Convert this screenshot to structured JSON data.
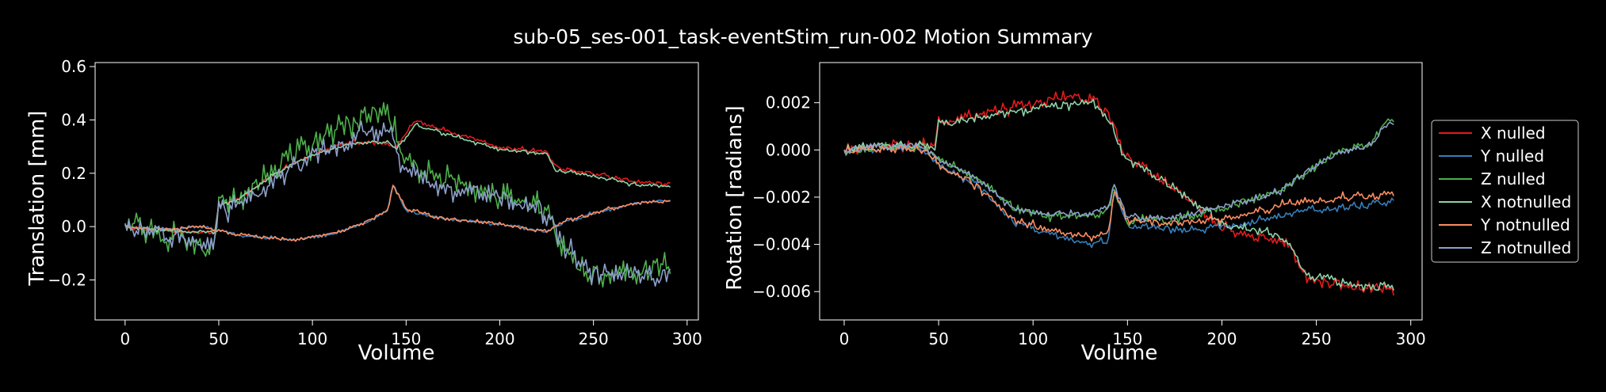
{
  "figure_title": "sub-05_ses-001_task-eventStim_run-002 Motion Summary",
  "colors": {
    "background": "#000000",
    "foreground": "#ffffff"
  },
  "chart_data": [
    {
      "type": "line",
      "ylabel": "Translation [mm]",
      "xlabel": "Volume",
      "xlim": [
        -16,
        306
      ],
      "ylim": [
        -0.35,
        0.615
      ],
      "xticks": [
        0,
        50,
        100,
        150,
        200,
        250,
        300
      ],
      "yticks": [
        -0.2,
        0.0,
        0.2,
        0.4,
        0.6
      ],
      "ytick_labels": [
        "−0.2",
        "0.0",
        "0.2",
        "0.4",
        "0.6"
      ],
      "grid": false,
      "series": [
        {
          "name": "X nulled",
          "color": "#e41a1c",
          "noise": 0.008,
          "anchors": [
            [
              0,
              0.0
            ],
            [
              15,
              -0.01
            ],
            [
              30,
              -0.02
            ],
            [
              48,
              -0.02
            ],
            [
              50,
              0.08
            ],
            [
              60,
              0.1
            ],
            [
              80,
              0.2
            ],
            [
              100,
              0.27
            ],
            [
              120,
              0.32
            ],
            [
              140,
              0.31
            ],
            [
              145,
              0.3
            ],
            [
              155,
              0.4
            ],
            [
              175,
              0.35
            ],
            [
              200,
              0.3
            ],
            [
              225,
              0.28
            ],
            [
              230,
              0.22
            ],
            [
              250,
              0.2
            ],
            [
              270,
              0.17
            ],
            [
              291,
              0.16
            ]
          ]
        },
        {
          "name": "Y nulled",
          "color": "#377eb8",
          "noise": 0.006,
          "anchors": [
            [
              0,
              0.0
            ],
            [
              20,
              -0.01
            ],
            [
              40,
              0.0
            ],
            [
              60,
              -0.03
            ],
            [
              90,
              -0.05
            ],
            [
              110,
              -0.03
            ],
            [
              130,
              0.02
            ],
            [
              140,
              0.06
            ],
            [
              143,
              0.16
            ],
            [
              150,
              0.06
            ],
            [
              170,
              0.03
            ],
            [
              200,
              0.01
            ],
            [
              225,
              -0.02
            ],
            [
              235,
              0.02
            ],
            [
              255,
              0.06
            ],
            [
              275,
              0.09
            ],
            [
              291,
              0.1
            ]
          ]
        },
        {
          "name": "Z nulled",
          "color": "#4daf4a",
          "noise": 0.05,
          "anchors": [
            [
              0,
              0.0
            ],
            [
              15,
              0.0
            ],
            [
              30,
              -0.06
            ],
            [
              48,
              -0.07
            ],
            [
              50,
              0.07
            ],
            [
              70,
              0.15
            ],
            [
              90,
              0.27
            ],
            [
              110,
              0.35
            ],
            [
              130,
              0.42
            ],
            [
              143,
              0.4
            ],
            [
              147,
              0.25
            ],
            [
              165,
              0.18
            ],
            [
              190,
              0.14
            ],
            [
              210,
              0.1
            ],
            [
              225,
              0.07
            ],
            [
              235,
              -0.1
            ],
            [
              250,
              -0.18
            ],
            [
              270,
              -0.17
            ],
            [
              291,
              -0.14
            ]
          ]
        },
        {
          "name": "X notnulled",
          "color": "#8dd3a7",
          "noise": 0.007,
          "anchors": [
            [
              0,
              0.0
            ],
            [
              15,
              -0.01
            ],
            [
              30,
              -0.02
            ],
            [
              48,
              -0.02
            ],
            [
              50,
              0.08
            ],
            [
              60,
              0.1
            ],
            [
              80,
              0.2
            ],
            [
              100,
              0.27
            ],
            [
              120,
              0.31
            ],
            [
              140,
              0.32
            ],
            [
              145,
              0.29
            ],
            [
              155,
              0.38
            ],
            [
              175,
              0.34
            ],
            [
              200,
              0.29
            ],
            [
              225,
              0.27
            ],
            [
              230,
              0.21
            ],
            [
              250,
              0.19
            ],
            [
              270,
              0.16
            ],
            [
              291,
              0.15
            ]
          ]
        },
        {
          "name": "Y notnulled",
          "color": "#fc8d62",
          "noise": 0.007,
          "anchors": [
            [
              0,
              0.0
            ],
            [
              20,
              -0.01
            ],
            [
              40,
              0.0
            ],
            [
              60,
              -0.03
            ],
            [
              90,
              -0.05
            ],
            [
              110,
              -0.03
            ],
            [
              130,
              0.02
            ],
            [
              140,
              0.06
            ],
            [
              143,
              0.15
            ],
            [
              150,
              0.07
            ],
            [
              170,
              0.03
            ],
            [
              200,
              0.01
            ],
            [
              225,
              -0.02
            ],
            [
              235,
              0.02
            ],
            [
              255,
              0.06
            ],
            [
              275,
              0.09
            ],
            [
              291,
              0.1
            ]
          ]
        },
        {
          "name": "Z notnulled",
          "color": "#8da0cb",
          "noise": 0.04,
          "anchors": [
            [
              0,
              0.0
            ],
            [
              15,
              0.0
            ],
            [
              30,
              -0.05
            ],
            [
              48,
              -0.06
            ],
            [
              50,
              0.06
            ],
            [
              70,
              0.12
            ],
            [
              90,
              0.22
            ],
            [
              110,
              0.3
            ],
            [
              130,
              0.36
            ],
            [
              143,
              0.35
            ],
            [
              147,
              0.22
            ],
            [
              165,
              0.15
            ],
            [
              190,
              0.12
            ],
            [
              210,
              0.08
            ],
            [
              225,
              0.06
            ],
            [
              235,
              -0.08
            ],
            [
              250,
              -0.17
            ],
            [
              270,
              -0.18
            ],
            [
              291,
              -0.17
            ]
          ]
        }
      ]
    },
    {
      "type": "line",
      "ylabel": "Rotation [radians]",
      "xlabel": "Volume",
      "xlim": [
        -13,
        306
      ],
      "ylim": [
        -0.0072,
        0.0037
      ],
      "xticks": [
        0,
        50,
        100,
        150,
        200,
        250,
        300
      ],
      "yticks": [
        -0.006,
        -0.004,
        -0.002,
        0.0,
        0.002
      ],
      "ytick_labels": [
        "−0.006",
        "−0.004",
        "−0.002",
        "0.000",
        "0.002"
      ],
      "grid": false,
      "series": [
        {
          "name": "X nulled",
          "color": "#e41a1c",
          "noise": 0.00025,
          "anchors": [
            [
              0,
              0.0
            ],
            [
              20,
              0.0002
            ],
            [
              45,
              0.0002
            ],
            [
              48,
              0.0001
            ],
            [
              50,
              0.0012
            ],
            [
              70,
              0.0015
            ],
            [
              90,
              0.0018
            ],
            [
              110,
              0.0021
            ],
            [
              130,
              0.0023
            ],
            [
              140,
              0.0015
            ],
            [
              148,
              -0.0002
            ],
            [
              160,
              -0.0008
            ],
            [
              180,
              -0.002
            ],
            [
              200,
              -0.0033
            ],
            [
              220,
              -0.0037
            ],
            [
              235,
              -0.004
            ],
            [
              245,
              -0.0055
            ],
            [
              270,
              -0.0058
            ],
            [
              291,
              -0.006
            ]
          ]
        },
        {
          "name": "Y nulled",
          "color": "#377eb8",
          "noise": 0.00015,
          "anchors": [
            [
              0,
              0.0
            ],
            [
              20,
              0.0001
            ],
            [
              40,
              0.0001
            ],
            [
              50,
              -0.0006
            ],
            [
              70,
              -0.0015
            ],
            [
              90,
              -0.003
            ],
            [
              110,
              -0.0036
            ],
            [
              130,
              -0.004
            ],
            [
              140,
              -0.0038
            ],
            [
              143,
              -0.0018
            ],
            [
              150,
              -0.0032
            ],
            [
              180,
              -0.0034
            ],
            [
              210,
              -0.0032
            ],
            [
              240,
              -0.0026
            ],
            [
              270,
              -0.0024
            ],
            [
              291,
              -0.0022
            ]
          ]
        },
        {
          "name": "Z nulled",
          "color": "#4daf4a",
          "noise": 0.0002,
          "anchors": [
            [
              0,
              0.0
            ],
            [
              20,
              0.0001
            ],
            [
              40,
              0.0002
            ],
            [
              50,
              -0.0004
            ],
            [
              70,
              -0.0012
            ],
            [
              90,
              -0.0025
            ],
            [
              110,
              -0.0028
            ],
            [
              130,
              -0.0028
            ],
            [
              140,
              -0.0025
            ],
            [
              143,
              -0.0016
            ],
            [
              150,
              -0.003
            ],
            [
              170,
              -0.003
            ],
            [
              190,
              -0.0027
            ],
            [
              210,
              -0.0022
            ],
            [
              230,
              -0.0018
            ],
            [
              245,
              -0.0009
            ],
            [
              260,
              -0.0002
            ],
            [
              280,
              0.0003
            ],
            [
              287,
              0.0012
            ],
            [
              291,
              0.0012
            ]
          ]
        },
        {
          "name": "X notnulled",
          "color": "#8dd3a7",
          "noise": 0.0002,
          "anchors": [
            [
              0,
              0.0
            ],
            [
              20,
              0.0002
            ],
            [
              45,
              0.0002
            ],
            [
              48,
              0.0001
            ],
            [
              50,
              0.0011
            ],
            [
              70,
              0.0013
            ],
            [
              90,
              0.0016
            ],
            [
              110,
              0.0018
            ],
            [
              130,
              0.002
            ],
            [
              140,
              0.0013
            ],
            [
              148,
              -0.0003
            ],
            [
              160,
              -0.0008
            ],
            [
              180,
              -0.0019
            ],
            [
              200,
              -0.0031
            ],
            [
              220,
              -0.0035
            ],
            [
              235,
              -0.0038
            ],
            [
              245,
              -0.0053
            ],
            [
              270,
              -0.0057
            ],
            [
              291,
              -0.0058
            ]
          ]
        },
        {
          "name": "Y notnulled",
          "color": "#fc8d62",
          "noise": 0.00017,
          "anchors": [
            [
              0,
              0.0
            ],
            [
              20,
              0.0001
            ],
            [
              40,
              0.0001
            ],
            [
              50,
              -0.0006
            ],
            [
              70,
              -0.0015
            ],
            [
              90,
              -0.003
            ],
            [
              110,
              -0.0034
            ],
            [
              130,
              -0.0037
            ],
            [
              140,
              -0.0035
            ],
            [
              143,
              -0.0018
            ],
            [
              150,
              -0.003
            ],
            [
              180,
              -0.0031
            ],
            [
              210,
              -0.0028
            ],
            [
              240,
              -0.0022
            ],
            [
              270,
              -0.002
            ],
            [
              291,
              -0.0019
            ]
          ]
        },
        {
          "name": "Z notnulled",
          "color": "#8da0cb",
          "noise": 0.00015,
          "anchors": [
            [
              0,
              0.0
            ],
            [
              20,
              0.0001
            ],
            [
              40,
              0.0002
            ],
            [
              50,
              -0.0004
            ],
            [
              70,
              -0.0012
            ],
            [
              90,
              -0.0025
            ],
            [
              110,
              -0.0027
            ],
            [
              130,
              -0.0027
            ],
            [
              140,
              -0.0024
            ],
            [
              143,
              -0.0015
            ],
            [
              150,
              -0.0028
            ],
            [
              170,
              -0.0029
            ],
            [
              190,
              -0.0026
            ],
            [
              210,
              -0.0022
            ],
            [
              230,
              -0.0018
            ],
            [
              245,
              -0.0009
            ],
            [
              260,
              -0.0002
            ],
            [
              280,
              0.0003
            ],
            [
              287,
              0.0011
            ],
            [
              291,
              0.0011
            ]
          ]
        }
      ]
    }
  ],
  "legend": {
    "placement": "right",
    "entries": [
      {
        "label": "X nulled",
        "color": "#e41a1c"
      },
      {
        "label": "Y nulled",
        "color": "#377eb8"
      },
      {
        "label": "Z nulled",
        "color": "#4daf4a"
      },
      {
        "label": "X notnulled",
        "color": "#8dd3a7"
      },
      {
        "label": "Y notnulled",
        "color": "#fc8d62"
      },
      {
        "label": "Z notnulled",
        "color": "#8da0cb"
      }
    ]
  }
}
